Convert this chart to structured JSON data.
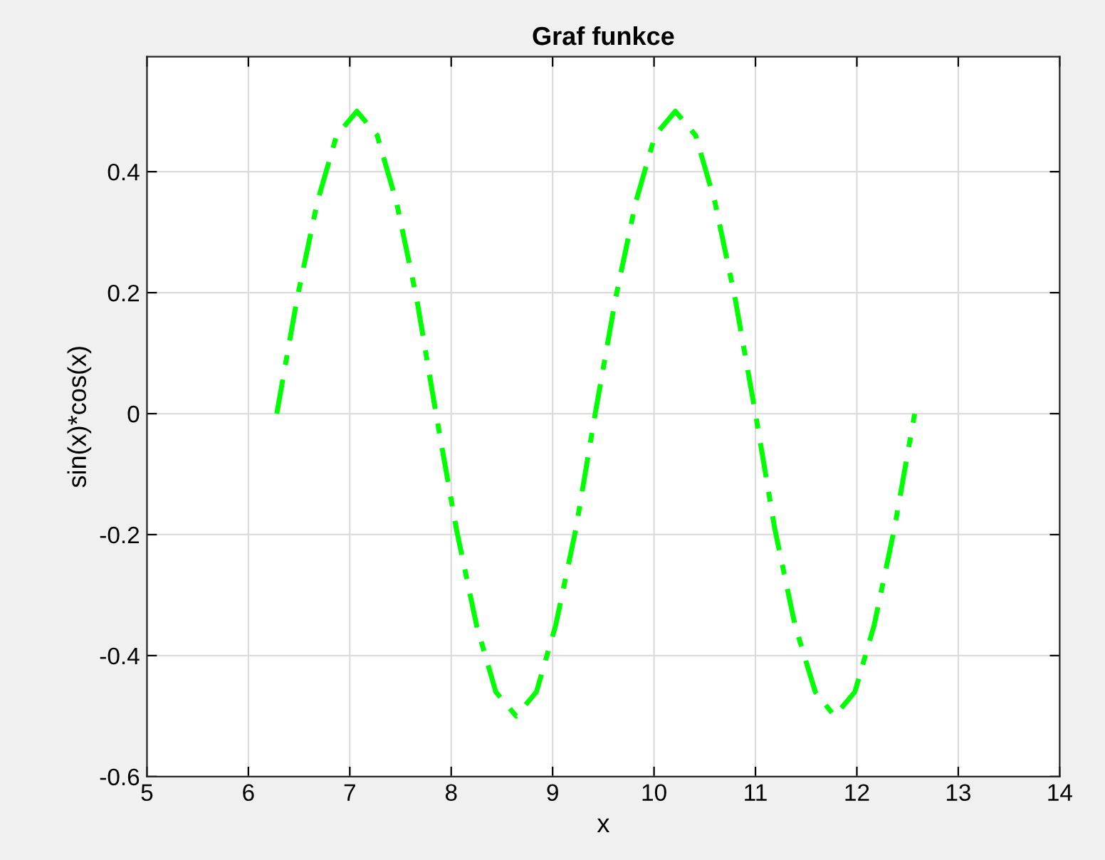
{
  "chart_data": {
    "type": "line",
    "title": "Graf funkce",
    "xlabel": "x",
    "ylabel": "sin(x)*cos(x)",
    "x": [
      6.28,
      6.48,
      6.68,
      6.87,
      7.07,
      7.27,
      7.46,
      7.66,
      7.85,
      8.05,
      8.25,
      8.44,
      8.64,
      8.84,
      9.03,
      9.23,
      9.42,
      9.62,
      9.82,
      10.01,
      10.21,
      10.41,
      10.6,
      10.8,
      11.0,
      11.19,
      11.39,
      11.59,
      11.78,
      11.98,
      12.17,
      12.37,
      12.57
    ],
    "series": [
      {
        "color": "#00ff00",
        "values": [
          0,
          0.19,
          0.35,
          0.46,
          0.5,
          0.46,
          0.35,
          0.19,
          0,
          -0.19,
          -0.35,
          -0.46,
          -0.5,
          -0.46,
          -0.35,
          -0.19,
          0,
          0.19,
          0.35,
          0.46,
          0.5,
          0.46,
          0.35,
          0.19,
          0,
          -0.19,
          -0.35,
          -0.46,
          -0.5,
          -0.46,
          -0.35,
          -0.19,
          0
        ]
      }
    ],
    "xlim": [
      5,
      14
    ],
    "xticks": [
      5,
      6,
      7,
      8,
      9,
      10,
      11,
      12,
      13,
      14
    ],
    "ylim": [
      -0.6,
      0.59
    ],
    "yticks": [
      -0.6,
      -0.4,
      -0.2,
      0,
      0.2,
      0.4
    ],
    "grid": true,
    "line_style": "dashed",
    "marker": "none"
  }
}
